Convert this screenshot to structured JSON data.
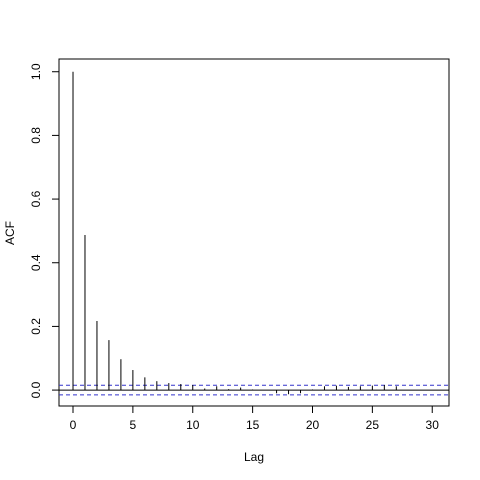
{
  "chart_data": {
    "type": "acf",
    "x_label": "Lag",
    "y_label": "ACF",
    "x": [
      0,
      1,
      2,
      3,
      4,
      5,
      6,
      7,
      8,
      9,
      10,
      11,
      12,
      13,
      14,
      15,
      16,
      17,
      18,
      19,
      20,
      21,
      22,
      23,
      24,
      25,
      26,
      27
    ],
    "values": [
      1.0,
      0.487,
      0.217,
      0.157,
      0.097,
      0.063,
      0.04,
      0.028,
      0.022,
      0.019,
      0.016,
      0.005,
      0.012,
      0.003,
      0.008,
      0.002,
      0,
      -0.01,
      -0.013,
      -0.01,
      0.002,
      0.012,
      0.014,
      0.01,
      0.012,
      0.014,
      0.016,
      0.012
    ],
    "ci": 0.015,
    "ci_color": "#3333cc",
    "color": "#000000",
    "xlim": [
      -1.17,
      31.4
    ],
    "ylim": [
      -0.05,
      1.04
    ],
    "xticks": [
      0,
      5,
      10,
      15,
      20,
      25,
      30
    ],
    "yticks": [
      {
        "value": 0,
        "label": "0.0"
      },
      0.2,
      0.4,
      0.6,
      0.8,
      {
        "value": 1,
        "label": "1.0"
      }
    ]
  }
}
